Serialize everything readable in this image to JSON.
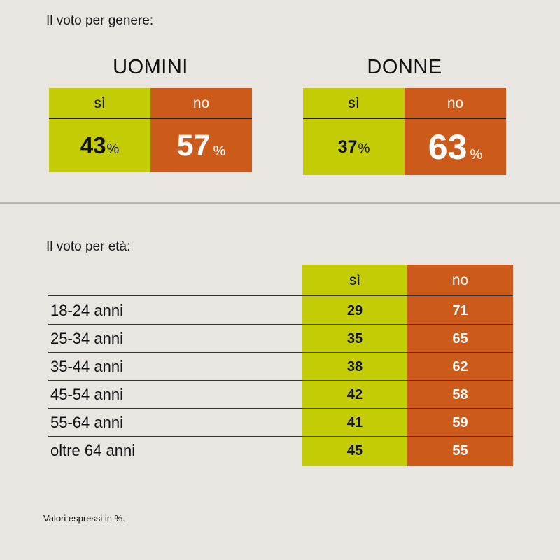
{
  "gender_section": {
    "title": "Il voto per genere:",
    "groups": [
      {
        "name": "UOMINI",
        "yes_label": "sì",
        "no_label": "no",
        "yes_value": "43",
        "no_value": "57",
        "pct": "%"
      },
      {
        "name": "DONNE",
        "yes_label": "sì",
        "no_label": "no",
        "yes_value": "37",
        "no_value": "63",
        "pct": "%"
      }
    ]
  },
  "age_section": {
    "title": "Il voto per età:",
    "col_yes": "sì",
    "col_no": "no",
    "rows": [
      {
        "label": "18-24 anni",
        "yes": "29",
        "no": "71"
      },
      {
        "label": "25-34 anni",
        "yes": "35",
        "no": "65"
      },
      {
        "label": "35-44 anni",
        "yes": "38",
        "no": "62"
      },
      {
        "label": "45-54 anni",
        "yes": "42",
        "no": "58"
      },
      {
        "label": "55-64 anni",
        "yes": "41",
        "no": "59"
      },
      {
        "label": "oltre 64 anni",
        "yes": "45",
        "no": "55"
      }
    ]
  },
  "footnote": "Valori espressi in %.",
  "colors": {
    "yes": "#c4cc06",
    "no": "#cc5a1a",
    "background": "#e9e6e2"
  },
  "chart_data": [
    {
      "type": "table",
      "title": "Il voto per genere:",
      "columns": [
        "sì",
        "no"
      ],
      "rows": [
        {
          "label": "UOMINI",
          "values": [
            43,
            57
          ]
        },
        {
          "label": "DONNE",
          "values": [
            37,
            63
          ]
        }
      ],
      "unit": "%"
    },
    {
      "type": "table",
      "title": "Il voto per età:",
      "columns": [
        "sì",
        "no"
      ],
      "rows": [
        {
          "label": "18-24 anni",
          "values": [
            29,
            71
          ]
        },
        {
          "label": "25-34 anni",
          "values": [
            35,
            65
          ]
        },
        {
          "label": "35-44 anni",
          "values": [
            38,
            62
          ]
        },
        {
          "label": "45-54 anni",
          "values": [
            42,
            58
          ]
        },
        {
          "label": "55-64 anni",
          "values": [
            41,
            59
          ]
        },
        {
          "label": "oltre 64 anni",
          "values": [
            45,
            55
          ]
        }
      ]
    }
  ]
}
